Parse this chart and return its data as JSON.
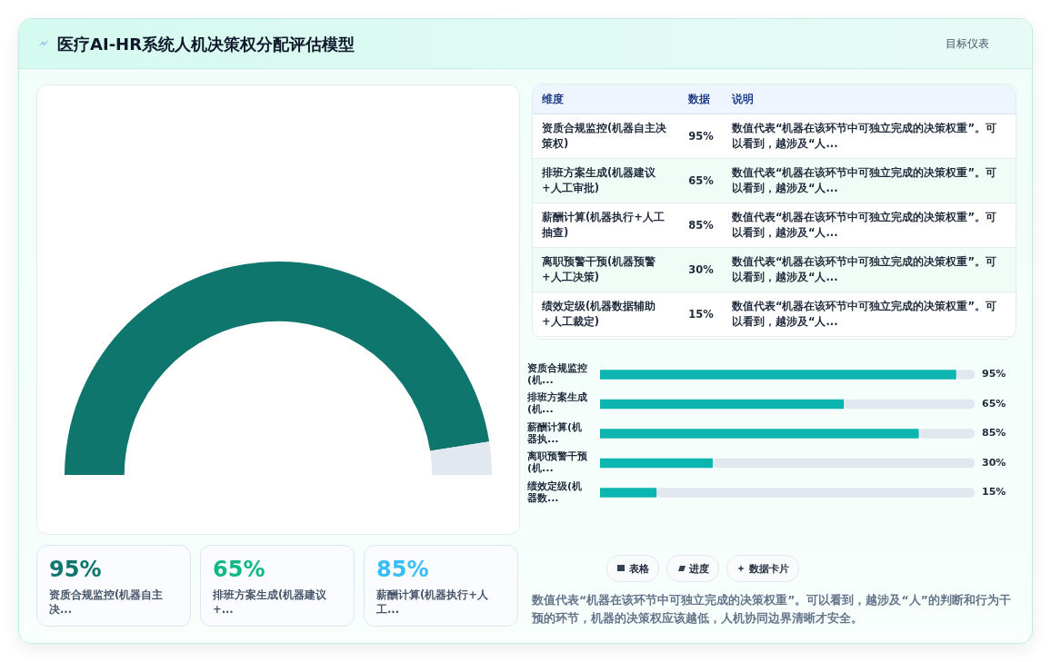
{
  "chart_data": [
    {
      "type": "other",
      "title": "医疗AI-HR系统人机决策权分配评估模型",
      "subtitle": "目标仪表"
    },
    {
      "type": "donut",
      "categories": [
        null,
        null
      ],
      "values": [
        95,
        5
      ],
      "colors": [
        "#0f766e",
        "#e2e8f0"
      ],
      "legend": false
    },
    {
      "type": "other",
      "categories": [
        "资质合规监控(机器自主决策权)",
        "排班方案生成(机器建议+人工审批)",
        "薪酬计算(机器执行+人工抽查)",
        "离职预警干预(机器预警+人工决策)",
        "绩效定级(机器数据辅助+人工裁定)"
      ],
      "value_labels": [
        "95%",
        "65%",
        "85%",
        "30%",
        "15%"
      ],
      "annotations": [
        "维度",
        "数据",
        "说明",
        "数值代表“机器在该环节中可独立完成的决策权重”。可以看到，越涉及“人...",
        "数值代表“机器在该环节中可独立完成的决策权重”。可以看到，越涉及“人...",
        "数值代表“机器在该环节中可独立完成的决策权重”。可以看到，越涉及“人...",
        "数值代表“机器在该环节中可独立完成的决策权重”。可以看到，越涉及“人...",
        "数值代表“机器在该环节中可独立完成的决策权重”。可以看到，越涉及“人..."
      ]
    },
    {
      "type": "bar",
      "orientation": "horizontal",
      "stacked": true,
      "categories": [
        "资质合规监控(机...",
        "排班方案生成(机...",
        "薪酬计算(机器执...",
        "离职预警干预(机...",
        "绩效定级(机器数..."
      ],
      "series": [
        {
          "color": "#0db5b0",
          "values": [
            95,
            65,
            85,
            30,
            15
          ],
          "value_labels": [
            "95%",
            "65%",
            "85%",
            "30%",
            "15%"
          ]
        },
        {
          "color": "#e2e8f0",
          "values": [
            5,
            35,
            15,
            70,
            85
          ]
        }
      ],
      "xlim": [
        0,
        100
      ],
      "tick_labels": "y",
      "legend": false,
      "annotations": [
        "表格",
        "进度",
        "数据卡片",
        "数值代表“机器在该环节中可独立完成的决策权重”。可以看到，越涉及“人”的判断和行为干预的环节，机器的决策权应该越低，人机协同边界清晰才安全。"
      ]
    },
    {
      "type": "other",
      "categories": [
        "资质合规监控(机器自主决...",
        "排班方案生成(机器建议+...",
        "薪酬计算(机器执行+人工..."
      ],
      "value_labels": [
        "95%",
        "65%",
        "85%"
      ]
    }
  ]
}
